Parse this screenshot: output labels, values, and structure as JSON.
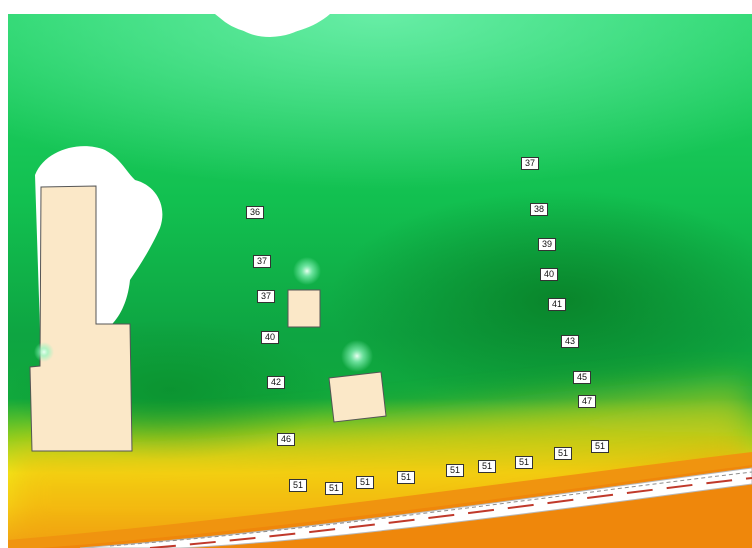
{
  "noise_map": {
    "colors": {
      "white": "#ffffff",
      "light_green": "#5ee39e",
      "green": "#13c24f",
      "dark_green": "#098f2c",
      "yellow": "#f5ee18",
      "orange": "#f39a0c",
      "building": "#fbe8c8",
      "road_line": "#c0392b"
    },
    "labels": [
      "37",
      "36",
      "38",
      "37",
      "39",
      "37",
      "40",
      "41",
      "40",
      "43",
      "42",
      "45",
      "47",
      "46",
      "51",
      "51",
      "51",
      "51",
      "51",
      "51",
      "51",
      "51",
      "51",
      "51"
    ]
  }
}
